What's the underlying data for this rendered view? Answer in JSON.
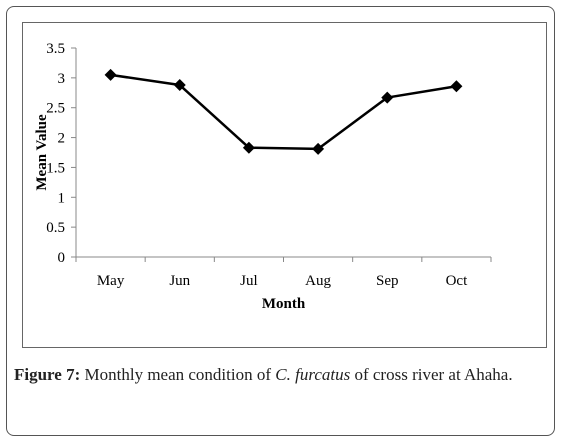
{
  "chart_data": {
    "type": "line",
    "categories": [
      "May",
      "Jun",
      "Jul",
      "Aug",
      "Sep",
      "Oct"
    ],
    "series": [
      {
        "values": [
          3.05,
          2.88,
          1.83,
          1.81,
          2.67,
          2.86
        ]
      }
    ],
    "xlabel": "Month",
    "ylabel": "Mean Value",
    "ylim": [
      0,
      3.5
    ],
    "yticks": [
      "0",
      "0.5",
      "1",
      "1.5",
      "2",
      "2.5",
      "3",
      "3.5"
    ],
    "grid": false,
    "marker": "diamond",
    "line_color": "#000000"
  },
  "caption": {
    "label": "Figure 7:",
    "text_before": " Monthly mean condition of ",
    "species": "C. furcatus",
    "text_after": " of cross river at Ahaha."
  }
}
